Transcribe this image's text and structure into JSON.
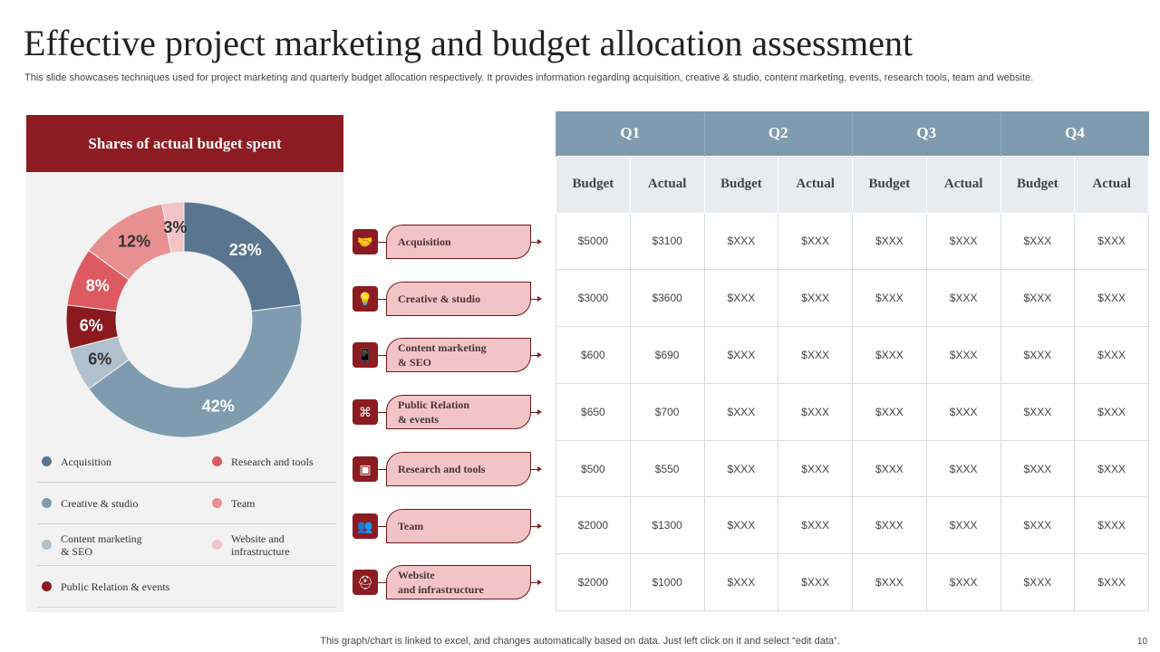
{
  "title": "Effective project marketing and budget allocation assessment",
  "subtitle": "This slide showcases techniques used for project marketing and quarterly budget allocation respectively. It provides information regarding acquisition, creative & studio, content marketing, events, research tools, team and website.",
  "panel_title": "Shares of actual budget spent",
  "chart_data": {
    "type": "pie",
    "title": "Shares of actual budget spent",
    "categories": [
      "Acquisition",
      "Creative & studio",
      "Content marketing & SEO",
      "Public Relation & events",
      "Research and tools",
      "Team",
      "Website and infrastructure"
    ],
    "values": [
      23,
      42,
      6,
      6,
      8,
      12,
      3
    ],
    "labels": [
      "23%",
      "42%",
      "6%",
      "6%",
      "8%",
      "12%",
      "3%"
    ],
    "colors": [
      "#5a7590",
      "#7f9bb0",
      "#b0c0cd",
      "#8b1a1f",
      "#dc5a60",
      "#e89090",
      "#f2c4c6"
    ],
    "label_colors": [
      "#ffffff",
      "#ffffff",
      "#333333",
      "#ffffff",
      "#ffffff",
      "#333333",
      "#333333"
    ],
    "donut": true,
    "legend_placement": "bottom"
  },
  "legend": [
    [
      "Acquisition",
      "Research and tools"
    ],
    [
      "Creative & studio",
      "Team"
    ],
    [
      "Content marketing\n& SEO",
      "Website and\ninfrastructure"
    ],
    [
      "Public Relation & events",
      ""
    ]
  ],
  "legend_colors": [
    [
      "#5a7590",
      "#dc5a60"
    ],
    [
      "#7f9bb0",
      "#e89090"
    ],
    [
      "#b0c0cd",
      "#f2c4c6"
    ],
    [
      "#8b1a1f",
      ""
    ]
  ],
  "categories": [
    {
      "label": "Acquisition",
      "icon": "handshake-icon",
      "glyph": "🤝"
    },
    {
      "label": "Creative  & studio",
      "icon": "lightbulb-icon",
      "glyph": "💡"
    },
    {
      "label": "Content  marketing\n& SEO",
      "icon": "mobile-icon",
      "glyph": "📱"
    },
    {
      "label": "Public Relation\n& events",
      "icon": "network-icon",
      "glyph": "⌘"
    },
    {
      "label": "Research  and  tools",
      "icon": "presentation-icon",
      "glyph": "▣"
    },
    {
      "label": "Team",
      "icon": "team-icon",
      "glyph": "👥"
    },
    {
      "label": "Website\nand  infrastructure",
      "icon": "helmet-icon",
      "glyph": "⛑"
    }
  ],
  "table": {
    "quarters": [
      "Q1",
      "Q2",
      "Q3",
      "Q4"
    ],
    "subheaders": [
      "Budget",
      "Actual",
      "Budget",
      "Actual",
      "Budget",
      "Actual",
      "Budget",
      "Actual"
    ],
    "rows": [
      [
        "$5000",
        "$3100",
        "$XXX",
        "$XXX",
        "$XXX",
        "$XXX",
        "$XXX",
        "$XXX"
      ],
      [
        "$3000",
        "$3600",
        "$XXX",
        "$XXX",
        "$XXX",
        "$XXX",
        "$XXX",
        "$XXX"
      ],
      [
        "$600",
        "$690",
        "$XXX",
        "$XXX",
        "$XXX",
        "$XXX",
        "$XXX",
        "$XXX"
      ],
      [
        "$650",
        "$700",
        "$XXX",
        "$XXX",
        "$XXX",
        "$XXX",
        "$XXX",
        "$XXX"
      ],
      [
        "$500",
        "$550",
        "$XXX",
        "$XXX",
        "$XXX",
        "$XXX",
        "$XXX",
        "$XXX"
      ],
      [
        "$2000",
        "$1300",
        "$XXX",
        "$XXX",
        "$XXX",
        "$XXX",
        "$XXX",
        "$XXX"
      ],
      [
        "$2000",
        "$1000",
        "$XXX",
        "$XXX",
        "$XXX",
        "$XXX",
        "$XXX",
        "$XXX"
      ]
    ]
  },
  "footer": "This graph/chart is linked to excel,  and changes automatically based on data. Just left click on it and select “edit data”.",
  "page_number": "10"
}
